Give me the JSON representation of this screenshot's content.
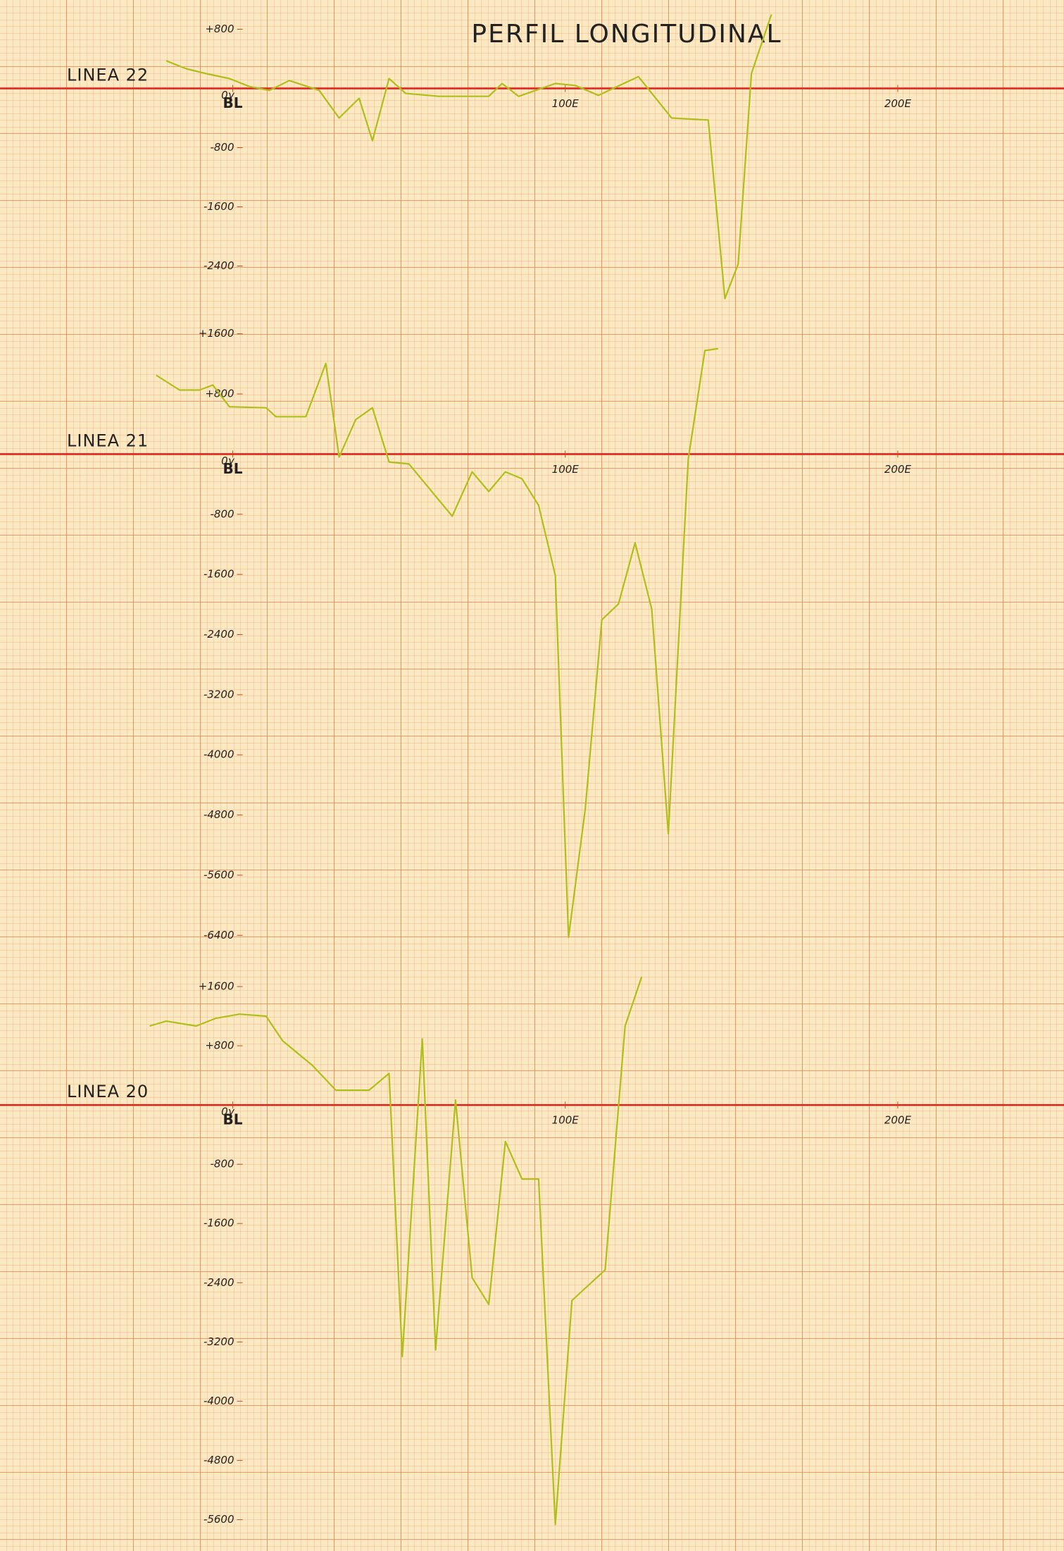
{
  "title": "PERFIL LONGITUDINAL",
  "chart_data": [
    {
      "type": "line",
      "title": "LINEA 22",
      "color": "#aebf1a",
      "x": [
        -20,
        -14,
        -8,
        -1,
        5,
        11,
        17,
        26,
        32,
        38,
        42,
        47,
        52,
        62,
        77,
        81,
        86,
        97,
        103,
        110,
        122,
        132,
        143,
        148,
        152,
        156,
        162
      ],
      "values": [
        373,
        267,
        200,
        133,
        27,
        -27,
        107,
        -27,
        -400,
        -133,
        -707,
        133,
        -67,
        -107,
        -107,
        67,
        -107,
        67,
        40,
        -93,
        160,
        -400,
        -427,
        -2840,
        -2373,
        200,
        1000
      ],
      "xlim": [
        -70,
        250
      ],
      "ylim": [
        -2900,
        1100
      ],
      "xticks": [
        {
          "value": 0,
          "label": "BL"
        },
        {
          "value": 100,
          "label": "100E"
        },
        {
          "value": 200,
          "label": "200E"
        }
      ],
      "yticks": [
        {
          "value": 800,
          "label": "+800"
        },
        {
          "value": 0,
          "label": "0γ"
        },
        -800,
        -1600,
        -2400
      ]
    },
    {
      "type": "line",
      "title": "LINEA 21",
      "color": "#aebf1a",
      "x": [
        -23,
        -16,
        -10,
        -6,
        -1,
        10,
        13,
        22,
        28,
        32,
        37,
        42,
        47,
        53,
        66,
        72,
        77,
        82,
        87,
        92,
        97,
        101,
        106,
        111,
        116,
        121,
        126,
        131,
        137,
        142,
        146
      ],
      "values": [
        1049,
        852,
        852,
        918,
        630,
        616,
        498,
        498,
        1207,
        -39,
        459,
        616,
        -105,
        -131,
        -826,
        -236,
        -498,
        -236,
        -328,
        -682,
        -1613,
        -6426,
        -4721,
        -2203,
        -1993,
        -1180,
        -2059,
        -5049,
        -66,
        1377,
        1403
      ],
      "xlim": [
        -70,
        250
      ],
      "ylim": [
        -6800,
        1700
      ],
      "xticks": [
        {
          "value": 0,
          "label": "BL"
        },
        {
          "value": 100,
          "label": "100E"
        },
        {
          "value": 200,
          "label": "200E"
        }
      ],
      "yticks": [
        {
          "value": 1600,
          "label": "+1600"
        },
        {
          "value": 800,
          "label": "+800"
        },
        {
          "value": 0,
          "label": "0γ"
        },
        -800,
        -1600,
        -2400,
        -3200,
        -4000,
        -4800,
        -5600,
        -6400
      ]
    },
    {
      "type": "line",
      "title": "LINEA 20",
      "color": "#aebf1a",
      "x": [
        -25,
        -20,
        -11,
        -5,
        2,
        10,
        15,
        24,
        31,
        41,
        47,
        51,
        57,
        61,
        67,
        72,
        77,
        82,
        87,
        92,
        97,
        102,
        112,
        118,
        123
      ],
      "values": [
        1067,
        1133,
        1067,
        1173,
        1227,
        1200,
        867,
        533,
        200,
        200,
        427,
        -3400,
        893,
        -3307,
        67,
        -2333,
        -2693,
        -493,
        -1000,
        -1000,
        -5667,
        -2640,
        -2227,
        1067,
        1733
      ],
      "xlim": [
        -70,
        250
      ],
      "ylim": [
        -5900,
        1800
      ],
      "xticks": [
        {
          "value": 0,
          "label": "BL"
        },
        {
          "value": 100,
          "label": "100E"
        },
        {
          "value": 200,
          "label": "200E"
        }
      ],
      "yticks": [
        {
          "value": 1600,
          "label": "+1600"
        },
        {
          "value": 800,
          "label": "+800"
        },
        {
          "value": 0,
          "label": "0γ"
        },
        -800,
        -1600,
        -2400,
        -3200,
        -4000,
        -4800,
        -5600
      ]
    }
  ]
}
